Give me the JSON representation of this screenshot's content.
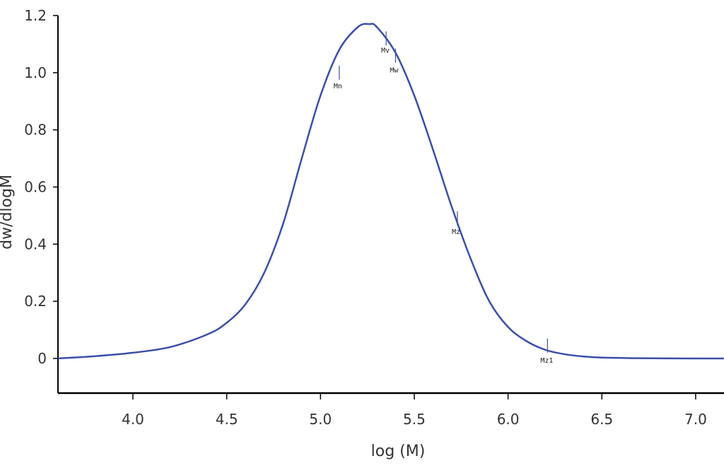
{
  "chart_data": {
    "type": "line",
    "title": "",
    "xlabel": "log (M)",
    "ylabel": "dw/dlogM",
    "xlim": [
      3.6,
      7.15
    ],
    "ylim": [
      -0.12,
      1.2
    ],
    "x_ticks": [
      "4.0",
      "4.5",
      "5.0",
      "5.5",
      "6.0",
      "6.5",
      "7.0"
    ],
    "y_ticks": [
      "0",
      "0.2",
      "0.4",
      "0.6",
      "0.8",
      "1.0",
      "1.2"
    ],
    "grid": false,
    "legend": null,
    "line_color": "#3a4fa8",
    "series": [
      {
        "name": "dw/dlogM",
        "x": [
          3.6,
          3.8,
          4.0,
          4.2,
          4.4,
          4.5,
          4.6,
          4.7,
          4.8,
          4.9,
          5.0,
          5.1,
          5.2,
          5.26,
          5.3,
          5.4,
          5.5,
          5.6,
          5.7,
          5.8,
          5.9,
          6.0,
          6.1,
          6.2,
          6.3,
          6.4,
          6.5,
          6.7,
          7.0,
          7.15
        ],
        "y": [
          0.0,
          0.008,
          0.02,
          0.04,
          0.085,
          0.125,
          0.19,
          0.3,
          0.47,
          0.7,
          0.92,
          1.08,
          1.16,
          1.17,
          1.16,
          1.07,
          0.92,
          0.73,
          0.53,
          0.35,
          0.2,
          0.11,
          0.06,
          0.03,
          0.015,
          0.007,
          0.003,
          0.001,
          0.0,
          0.0
        ]
      }
    ],
    "annotations": [
      {
        "label": "Mn",
        "x": 5.1,
        "y": 1.0
      },
      {
        "label": "Mv",
        "x": 5.35,
        "y": 1.12
      },
      {
        "label": "Mw",
        "x": 5.4,
        "y": 1.06
      },
      {
        "label": "Mz",
        "x": 5.73,
        "y": 0.49
      },
      {
        "label": "Mz1",
        "x": 6.21,
        "y": 0.045
      }
    ]
  }
}
